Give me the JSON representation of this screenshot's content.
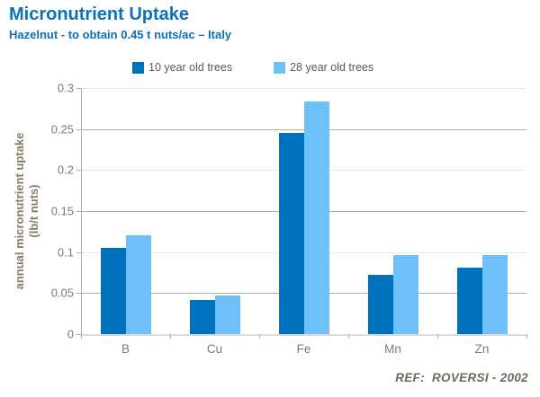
{
  "header": {
    "title": "Micronutrient Uptake",
    "subtitle": "Hazelnut - to obtain 0.45 t nuts/ac – Italy"
  },
  "footer": {
    "reference": "REF:  ROVERSI - 2002"
  },
  "chart_data": {
    "type": "bar",
    "title": "Micronutrient Uptake",
    "subtitle": "Hazelnut - to obtain 0.45 t nuts/ac – Italy",
    "categories": [
      "B",
      "Cu",
      "Fe",
      "Mn",
      "Zn"
    ],
    "series": [
      {
        "name": "10 year old trees",
        "color": "#0071bc",
        "values": [
          0.105,
          0.042,
          0.245,
          0.072,
          0.081
        ]
      },
      {
        "name": "28 year old trees",
        "color": "#6ec1f8",
        "values": [
          0.12,
          0.047,
          0.284,
          0.096,
          0.096
        ]
      }
    ],
    "xlabel": "",
    "ylabel_line1": "annual micronutrient uptake",
    "ylabel_line2": "(lb/t nuts)",
    "ylim": [
      0,
      0.3
    ],
    "yticks": [
      0,
      0.05,
      0.1,
      0.15,
      0.2,
      0.25,
      0.3
    ],
    "grid": true,
    "legend_position": "top",
    "annotation": "REF:  ROVERSI - 2002"
  },
  "colors": {
    "accent": "#0d70ba",
    "axis-text": "#80786f",
    "ylabel-text": "#8a7b66",
    "legend-text": "#595959",
    "ref-text": "#6f675c",
    "grid-dark": "#b4aba0",
    "grid-light": "#e9e6e1",
    "axis-line": "#b3aa9f",
    "baseline": "#e0dbd4"
  }
}
